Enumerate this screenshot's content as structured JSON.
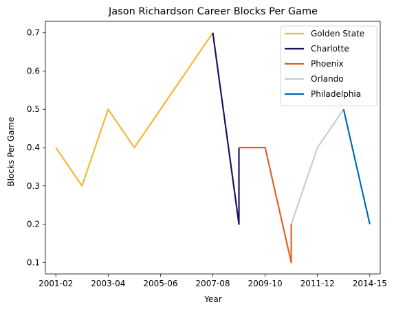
{
  "chart_data": {
    "type": "line",
    "title": "Jason Richardson Career Blocks Per Game",
    "xlabel": "Year",
    "ylabel": "Blocks Per Game",
    "x_tick_labels": [
      "2001-02",
      "2003-04",
      "2005-06",
      "2007-08",
      "2009-10",
      "2011-12",
      "2014-15"
    ],
    "x_tick_values": [
      2001,
      2003,
      2005,
      2007,
      2009,
      2011,
      2013
    ],
    "xlim": [
      2000.6,
      2013.4
    ],
    "ylim": [
      0.07,
      0.73
    ],
    "y_ticks": [
      0.1,
      0.2,
      0.3,
      0.4,
      0.5,
      0.6,
      0.7
    ],
    "grid": false,
    "legend_position": "top-right",
    "series": [
      {
        "name": "Golden State",
        "color": "#f4b834",
        "points": [
          [
            2001,
            0.4
          ],
          [
            2002,
            0.3
          ],
          [
            2003,
            0.5
          ],
          [
            2004,
            0.4
          ],
          [
            2007,
            0.7
          ]
        ]
      },
      {
        "name": "Charlotte",
        "color": "#1d1160",
        "points": [
          [
            2007,
            0.7
          ],
          [
            2008,
            0.2
          ],
          [
            2008,
            0.4
          ]
        ]
      },
      {
        "name": "Phoenix",
        "color": "#e56020",
        "points": [
          [
            2008,
            0.4
          ],
          [
            2009,
            0.4
          ],
          [
            2010,
            0.1
          ],
          [
            2010,
            0.2
          ]
        ]
      },
      {
        "name": "Orlando",
        "color": "#c4ced4",
        "points": [
          [
            2010,
            0.2
          ],
          [
            2011,
            0.4
          ],
          [
            2012,
            0.5
          ]
        ]
      },
      {
        "name": "Philadelphia",
        "color": "#006bb6",
        "points": [
          [
            2012,
            0.5
          ],
          [
            2013,
            0.2
          ]
        ]
      }
    ]
  }
}
